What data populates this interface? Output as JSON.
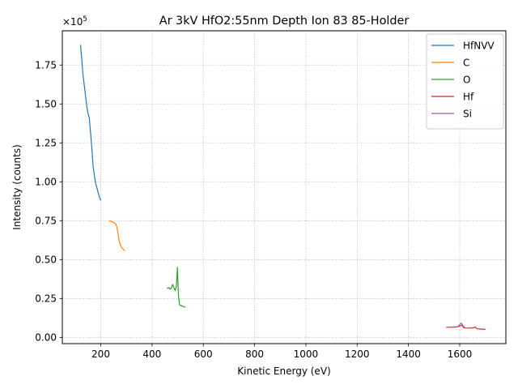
{
  "chart_data": {
    "type": "line",
    "title": "Ar 3kV HfO2:55nm Depth Ion 83 85-Holder",
    "xlabel": "Kinetic Energy (eV)",
    "ylabel": "Intensity (counts)",
    "y_offset_label": "×10",
    "y_offset_exponent": "5",
    "y_scale_factor": 100000,
    "xlim": [
      50,
      1780
    ],
    "ylim": [
      -4000,
      197000
    ],
    "x_ticks": [
      200,
      400,
      600,
      800,
      1000,
      1200,
      1400,
      1600
    ],
    "x_tick_labels": [
      "200",
      "400",
      "600",
      "800",
      "1000",
      "1200",
      "1400",
      "1600"
    ],
    "y_ticks": [
      0,
      25000,
      50000,
      75000,
      100000,
      125000,
      150000,
      175000
    ],
    "y_tick_labels": [
      "0.00",
      "0.25",
      "0.50",
      "0.75",
      "1.00",
      "1.25",
      "1.50",
      "1.75"
    ],
    "grid": true,
    "legend_position": "top-right",
    "series": [
      {
        "name": "HfNVV",
        "color": "#1f77b4",
        "x": [
          121,
          125,
          130,
          135,
          140,
          145,
          150,
          155,
          160,
          165,
          170,
          175,
          180,
          185,
          190,
          195,
          200
        ],
        "y": [
          188000,
          180000,
          170000,
          163000,
          156000,
          149000,
          144000,
          141000,
          132000,
          122000,
          110000,
          104000,
          99000,
          96000,
          93000,
          90000,
          88000
        ]
      },
      {
        "name": "C",
        "color": "#ff7f0e",
        "x": [
          233,
          240,
          250,
          258,
          263,
          267,
          272,
          277,
          283,
          288,
          294
        ],
        "y": [
          75000,
          74500,
          73800,
          73000,
          71000,
          67000,
          62000,
          59000,
          57500,
          56500,
          55500
        ]
      },
      {
        "name": "O",
        "color": "#2ca02c",
        "x": [
          458,
          465,
          470,
          475,
          480,
          485,
          490,
          495,
          499,
          501,
          503,
          507,
          512,
          520,
          530
        ],
        "y": [
          31500,
          32000,
          31000,
          31500,
          34000,
          32000,
          30000,
          33000,
          45000,
          35000,
          27000,
          21000,
          20500,
          20000,
          19500
        ]
      },
      {
        "name": "Hf",
        "color": "#d62728",
        "x": [
          1547,
          1560,
          1575,
          1590,
          1600,
          1608,
          1615,
          1622,
          1640,
          1655,
          1660,
          1668,
          1685,
          1700
        ],
        "y": [
          6500,
          6500,
          6600,
          6800,
          7200,
          8000,
          6400,
          6000,
          6000,
          6200,
          6800,
          5500,
          5300,
          5100
        ]
      },
      {
        "name": "Si",
        "color": "#9467bd",
        "x": [
          1594,
          1598,
          1602,
          1605,
          1608,
          1611,
          1615,
          1620
        ],
        "y": [
          7200,
          7800,
          8600,
          9300,
          8800,
          7900,
          7100,
          6700
        ]
      }
    ]
  }
}
